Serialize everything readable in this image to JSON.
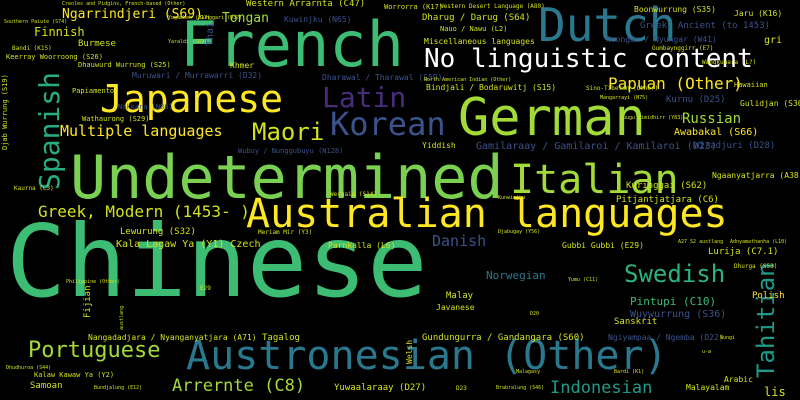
{
  "words": [
    {
      "text": "Chinese",
      "color": "#3dbc74"
    },
    {
      "text": "French",
      "color": "#3dbc74"
    },
    {
      "text": "Undetermined",
      "color": "#7ad151"
    },
    {
      "text": "German",
      "color": "#a2da37"
    },
    {
      "text": "Dutch",
      "color": "#2a788e"
    },
    {
      "text": "Australian languages",
      "color": "#fde725"
    },
    {
      "text": "Austronesian (Other)",
      "color": "#2a788e"
    },
    {
      "text": "Japanese",
      "color": "#fde725"
    },
    {
      "text": "No linguistic content",
      "color": "#ffffff"
    },
    {
      "text": "Italian",
      "color": "#a2da37"
    },
    {
      "text": "Korean",
      "color": "#3b528b"
    },
    {
      "text": "Latin",
      "color": "#472d7b"
    },
    {
      "text": "Maori",
      "color": "#d2e21b"
    },
    {
      "text": "Spanish",
      "color": "#27ad81"
    },
    {
      "text": "Tahitian",
      "color": "#1f9a8a"
    },
    {
      "text": "Swedish",
      "color": "#2db27d"
    },
    {
      "text": "Portuguese",
      "color": "#a2da37"
    },
    {
      "text": "Multiple languages",
      "color": "#fde725"
    },
    {
      "text": "Greek, Modern (1453- )",
      "color": "#d2e21b"
    },
    {
      "text": "Arrernte (C8)",
      "color": "#a2da37"
    },
    {
      "text": "Indonesian",
      "color": "#1f9a8a"
    },
    {
      "text": "Papuan (Other)",
      "color": "#fde725"
    },
    {
      "text": "Russian",
      "color": "#a2da37"
    },
    {
      "text": "Danish",
      "color": "#3b528b"
    },
    {
      "text": "Ngarrindjeri (S69)",
      "color": "#fde725"
    },
    {
      "text": "Tongan",
      "color": "#a2da37"
    },
    {
      "text": "Finnish",
      "color": "#d2e21b"
    },
    {
      "text": "Awabakal (S66)",
      "color": "#fde725"
    },
    {
      "text": "Kala Lagaw Ya (Y1) Czech",
      "color": "#d2e21b"
    },
    {
      "text": "Norwegian",
      "color": "#2a788e"
    },
    {
      "text": "Pintupi (C10)",
      "color": "#3dbc74"
    },
    {
      "text": "Gamilaraay / Gamilaroi / Kamilaroi (D23)",
      "color": "#3b528b"
    },
    {
      "text": "Kuringgai (S62)",
      "color": "#d2e21b"
    },
    {
      "text": "Wuywurrung (S36)",
      "color": "#3b528b"
    },
    {
      "text": "Lewurung (S32)",
      "color": "#d2e21b"
    },
    {
      "text": "Pitjantjatjara (C6)",
      "color": "#d2e21b"
    },
    {
      "text": "Ngaanyatjarra (A38)",
      "color": "#d2e21b"
    },
    {
      "text": "Gundungurra / Gandangara (S60)",
      "color": "#d2e21b"
    },
    {
      "text": "Yuwaalaraay (D27)",
      "color": "#d2e21b"
    },
    {
      "text": "Dharug / Darug (S64)",
      "color": "#d2e21b"
    },
    {
      "text": "Bindjali / Bodaruwitj (S15)",
      "color": "#d2e21b"
    },
    {
      "text": "Parnkalla (L6)",
      "color": "#d2e21b"
    },
    {
      "text": "Gubbi Gubbi (E29)",
      "color": "#d2e21b"
    },
    {
      "text": "Lurija (C7.1)",
      "color": "#d2e21b"
    },
    {
      "text": "Miscellaneous languages",
      "color": "#d2e21b"
    },
    {
      "text": "Noongar / Nyungar (W41)",
      "color": "#3b528b"
    },
    {
      "text": "Nangadadjara / Nyanganyatjara (A71)",
      "color": "#d2e21b"
    },
    {
      "text": "Muruwari / Murrawarri (D32)",
      "color": "#3b528b"
    },
    {
      "text": "Dharawal / Tharawal (S59)",
      "color": "#3b528b"
    },
    {
      "text": "Kurnu (D25)",
      "color": "#3b528b"
    },
    {
      "text": "Fijian",
      "color": "#d2e21b"
    },
    {
      "text": "Malay",
      "color": "#d2e21b"
    },
    {
      "text": "Tagalog",
      "color": "#d2e21b"
    },
    {
      "text": "Sanskrit",
      "color": "#d2e21b"
    },
    {
      "text": "Polish",
      "color": "#fde725"
    },
    {
      "text": "Samoan",
      "color": "#d2e21b"
    },
    {
      "text": "Burmese",
      "color": "#d2e21b"
    },
    {
      "text": "Javanese",
      "color": "#d2e21b"
    },
    {
      "text": "Malayalam",
      "color": "#d2e21b"
    },
    {
      "text": "Arabic",
      "color": "#d2e21b"
    },
    {
      "text": "lis",
      "color": "#d2e21b"
    },
    {
      "text": "gri",
      "color": "#d2e21b"
    },
    {
      "text": "Western Arrarnta (C47)",
      "color": "#d2e21b"
    },
    {
      "text": "Boonwurrung (S35)",
      "color": "#d2e21b"
    },
    {
      "text": "Jaru (K16)",
      "color": "#d2e21b"
    },
    {
      "text": "Greek, Ancient (to 1453)",
      "color": "#3b528b"
    },
    {
      "text": "Khmer",
      "color": "#d2e21b"
    },
    {
      "text": "Thai",
      "color": "#3b528b"
    },
    {
      "text": "Yiddish",
      "color": "#d2e21b"
    },
    {
      "text": "Welsh",
      "color": "#d2e21b"
    },
    {
      "text": "Hawaiian",
      "color": "#d2e21b"
    },
    {
      "text": "Gulidjan (S30)",
      "color": "#d2e21b"
    },
    {
      "text": "Papiamento",
      "color": "#d2e21b"
    },
    {
      "text": "Wathaurong (S29)",
      "color": "#d2e21b"
    },
    {
      "text": "Dhauwurd Wurrung (S25)",
      "color": "#d2e21b"
    },
    {
      "text": "Wubuy / Nunggubuyu (N128)",
      "color": "#3b528b"
    },
    {
      "text": "Wergaia (S14)",
      "color": "#d2e21b"
    },
    {
      "text": "Ngiyampaa / Ngemba (D22)",
      "color": "#3b528b"
    },
    {
      "text": "Kaurna (L3)",
      "color": "#d2e21b"
    },
    {
      "text": "Keerray Woorroong (S26)",
      "color": "#d2e21b"
    },
    {
      "text": "Bandi (K15)",
      "color": "#d2e21b"
    },
    {
      "text": "Djab Wurrung (S19)",
      "color": "#d2e21b"
    },
    {
      "text": "Kuwinjku (N65)",
      "color": "#3b528b"
    },
    {
      "text": "Wangkumara (L?)",
      "color": "#d2e21b"
    },
    {
      "text": "Gumbaynggirr (E7)",
      "color": "#d2e21b"
    },
    {
      "text": "Nauo / Nawu (L2)",
      "color": "#d2e21b"
    },
    {
      "text": "Kalaw Kawaw Ya (Y2)",
      "color": "#d2e21b"
    },
    {
      "text": "Dhudhuroa (S44)",
      "color": "#d2e21b"
    },
    {
      "text": "Bundjalung (E12)",
      "color": "#d2e21b"
    },
    {
      "text": "Yugambeh (E17)",
      "color": "#d2e21b"
    },
    {
      "text": "Meriam Mir (Y3)",
      "color": "#d2e21b"
    },
    {
      "text": "Nakkara (N80)",
      "color": "#3b528b"
    },
    {
      "text": "Gunggari (D37)",
      "color": "#d2e21b"
    },
    {
      "text": "Southern Paiute (S74)",
      "color": "#d2e21b"
    },
    {
      "text": "Creoles and Pidgins, French-based (Other)",
      "color": "#d2e21b"
    },
    {
      "text": "Worrorra (K17)",
      "color": "#d2e21b"
    },
    {
      "text": "Western Desert Language (A80)",
      "color": "#d2e21b"
    },
    {
      "text": "North American Indian (Other)",
      "color": "#d2e21b"
    },
    {
      "text": "Sino-Tibetan (Other)",
      "color": "#d2e21b"
    },
    {
      "text": "Mangarrayi (N75)",
      "color": "#d2e21b"
    },
    {
      "text": "Yaraldi (S69)",
      "color": "#d2e21b"
    },
    {
      "text": "Philippine (Other)",
      "color": "#d2e21b"
    },
    {
      "text": "Wiradjuri (D28)",
      "color": "#3b528b"
    },
    {
      "text": "Dhurga (S53)",
      "color": "#d2e21b"
    },
    {
      "text": "Guugu Yimidhirr (Y83)",
      "color": "#d2e21b"
    },
    {
      "text": "Kunwinjku",
      "color": "#d2e21b"
    },
    {
      "text": "Malagasy",
      "color": "#d2e21b"
    },
    {
      "text": "Bardi (K1)",
      "color": "#d2e21b"
    },
    {
      "text": "A27 S2 austlang",
      "color": "#d2e21b"
    },
    {
      "text": "Adnyamathanha (L10)",
      "color": "#d2e21b"
    },
    {
      "text": "Djabugay (Y56)",
      "color": "#d2e21b"
    },
    {
      "text": "E29",
      "color": "#d2e21b"
    },
    {
      "text": "D20",
      "color": "#d2e21b"
    },
    {
      "text": "D23",
      "color": "#d2e21b"
    },
    {
      "text": "Yumu (C11)",
      "color": "#d2e21b"
    },
    {
      "text": "u-a",
      "color": "#d2e21b"
    },
    {
      "text": "Nungi",
      "color": "#d2e21b"
    },
    {
      "text": "austlang",
      "color": "#d2e21b"
    },
    {
      "text": "Brabralung (S46)",
      "color": "#d2e21b"
    }
  ]
}
